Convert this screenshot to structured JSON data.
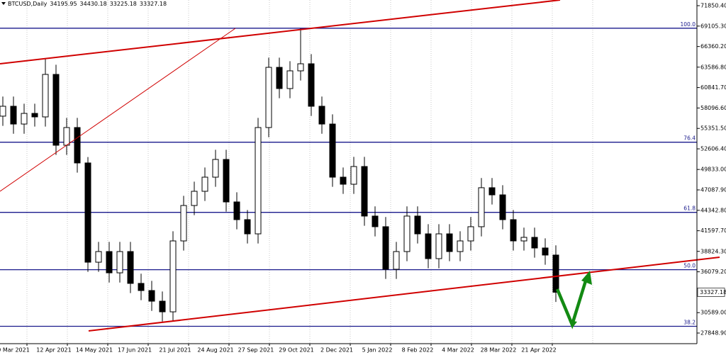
{
  "chart_data": {
    "type": "candlestick",
    "title": "BTCUSD,Daily",
    "title_values": [
      34195.95,
      34430.18,
      33225.18,
      33327.18
    ],
    "last_price": 33327.18,
    "ylim": [
      26420,
      72612
    ],
    "yticks": [
      {
        "value": 71850.4,
        "label": "71850.40"
      },
      {
        "value": 69105.3,
        "label": "69105.30"
      },
      {
        "value": 66360.2,
        "label": "66360.20"
      },
      {
        "value": 63586.8,
        "label": "63586.80"
      },
      {
        "value": 60841.7,
        "label": "60841.70"
      },
      {
        "value": 58096.6,
        "label": "58096.60"
      },
      {
        "value": 55351.5,
        "label": "55351.50"
      },
      {
        "value": 52606.4,
        "label": "52606.40"
      },
      {
        "value": 49833,
        "label": "49833.00"
      },
      {
        "value": 47087.9,
        "label": "47087.90"
      },
      {
        "value": 44342.8,
        "label": "44342.80"
      },
      {
        "value": 41597.7,
        "label": "41597.70"
      },
      {
        "value": 38824.3,
        "label": "38824.30"
      },
      {
        "value": 36079.2,
        "label": "36079.20"
      },
      {
        "value": 30589,
        "label": "30589.00"
      },
      {
        "value": 27848.9,
        "label": "27848.90"
      }
    ],
    "x_labels": [
      "9 Mar 2021",
      "12 Apr 2021",
      "14 May 2021",
      "17 Jun 2021",
      "21 Jul 2021",
      "24 Aug 2021",
      "27 Sep 2021",
      "29 Oct 2021",
      "2 Dec 2021",
      "5 Jan 2022",
      "8 Feb 2022",
      "4 Mar 2022",
      "28 Mar 2022",
      "21 Apr 2022"
    ],
    "levels": [
      {
        "label": "100.0",
        "price": 68820
      },
      {
        "label": "76.4",
        "price": 53500
      },
      {
        "label": "61.8",
        "price": 44070
      },
      {
        "label": "50.0",
        "price": 36360
      },
      {
        "label": "38.2",
        "price": 28750
      }
    ],
    "open": [
      57000,
      58330,
      55940,
      57370,
      56900,
      62610,
      53090,
      55470,
      50710,
      37370,
      38800,
      35940,
      38800,
      34520,
      33560,
      32130,
      30700,
      40230,
      44990,
      46900,
      48800,
      51180,
      45470,
      43090,
      41180,
      55470,
      63560,
      60710,
      63090,
      64040,
      58330,
      55940,
      48800,
      47850,
      50230,
      43570,
      42140,
      36420,
      38800,
      43570,
      41180,
      37850,
      41180,
      38800,
      40230,
      42140,
      47380,
      46420,
      43090,
      40230,
      40710,
      39280,
      38330
    ],
    "high": [
      59630,
      59630,
      58670,
      58670,
      64800,
      63910,
      56770,
      56770,
      51500,
      40100,
      40100,
      40100,
      40100,
      35820,
      34860,
      33430,
      41530,
      46290,
      48200,
      50100,
      52480,
      52480,
      46770,
      44390,
      56770,
      64860,
      64860,
      64390,
      68800,
      65340,
      59630,
      57240,
      50100,
      51530,
      51530,
      44870,
      43440,
      40100,
      44870,
      44870,
      42480,
      42480,
      42480,
      41530,
      43440,
      48680,
      48680,
      47720,
      44390,
      42010,
      42010,
      40580,
      39630
    ],
    "low": [
      55700,
      54640,
      54640,
      55600,
      55600,
      51790,
      51790,
      49410,
      36070,
      36070,
      34640,
      34640,
      33220,
      32260,
      30830,
      29400,
      29400,
      38930,
      43690,
      45600,
      47500,
      44170,
      41790,
      39880,
      39880,
      54170,
      59410,
      59410,
      61790,
      57030,
      54640,
      47500,
      46550,
      46550,
      42270,
      40840,
      35120,
      35120,
      37500,
      39880,
      36550,
      36550,
      37500,
      37500,
      38930,
      40840,
      45120,
      41790,
      38930,
      38930,
      37980,
      37030,
      32030
    ],
    "close": [
      58330,
      55940,
      57370,
      56900,
      62610,
      53090,
      55470,
      50710,
      37370,
      38800,
      35940,
      38800,
      34520,
      33560,
      32130,
      30700,
      40230,
      44990,
      46900,
      48800,
      51180,
      45470,
      43090,
      41180,
      55470,
      63560,
      60710,
      63090,
      64040,
      58330,
      55940,
      48800,
      47850,
      50230,
      43570,
      42140,
      36420,
      38800,
      43570,
      41180,
      37850,
      41180,
      38800,
      40230,
      42140,
      47380,
      46420,
      43090,
      40230,
      40710,
      39280,
      38330,
      33330
    ]
  }
}
